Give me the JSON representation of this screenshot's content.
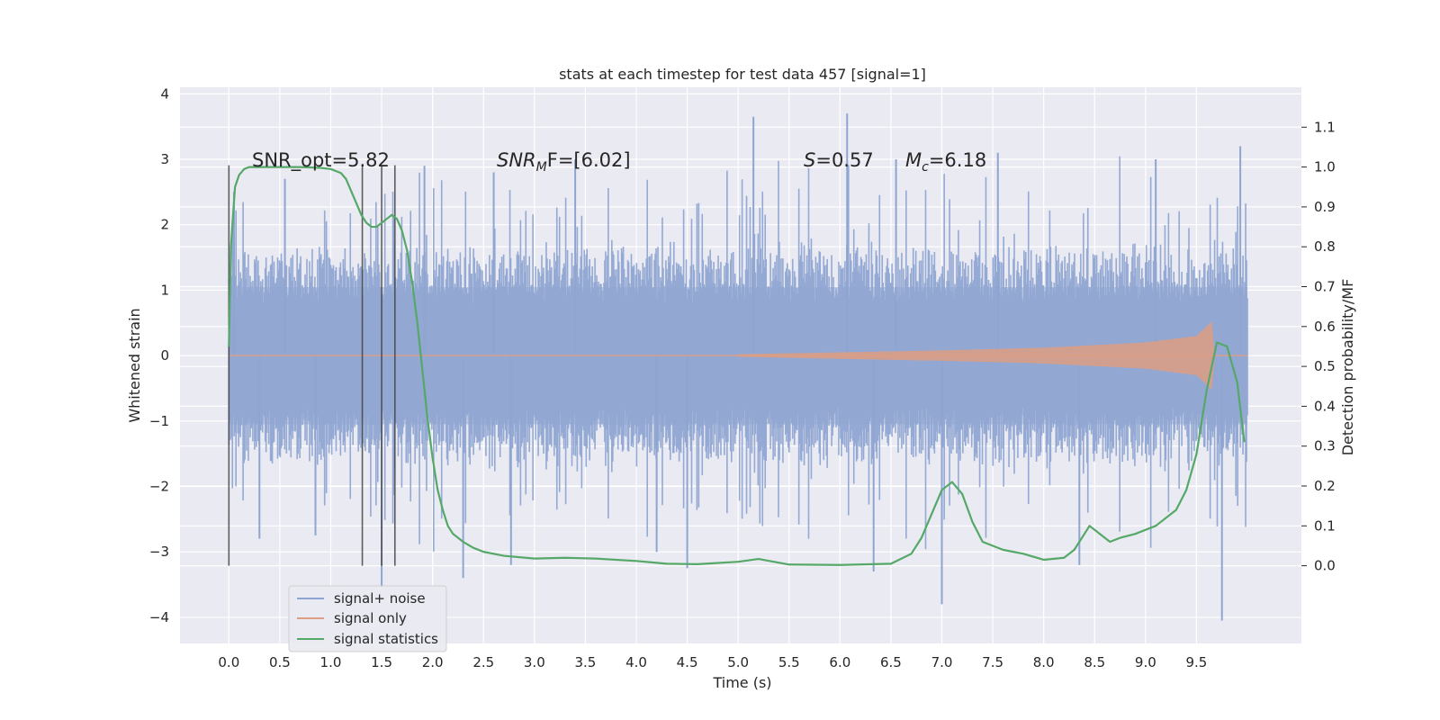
{
  "chart_data": {
    "type": "line",
    "title": "stats at each timestep for test data 457 [signal=1]",
    "xlabel": "Time (s)",
    "ylabel": "Whitened strain",
    "y2label": "Detection probability/MF",
    "xlim": [
      -0.48,
      10.53
    ],
    "ylim": [
      -4.4,
      4.1
    ],
    "y2lim": [
      -0.195,
      1.2
    ],
    "xticks": [
      "0.0",
      "0.5",
      "1.0",
      "1.5",
      "2.0",
      "2.5",
      "3.0",
      "3.5",
      "4.0",
      "4.5",
      "5.0",
      "5.5",
      "6.0",
      "6.5",
      "7.0",
      "7.5",
      "8.0",
      "8.5",
      "9.0",
      "9.5"
    ],
    "yticks": [
      "4",
      "3",
      "2",
      "1",
      "0",
      "−1",
      "−2",
      "−3",
      "−4"
    ],
    "y2ticks": [
      "1.1",
      "1.0",
      "0.9",
      "0.8",
      "0.7",
      "0.6",
      "0.5",
      "0.4",
      "0.3",
      "0.2",
      "0.1",
      "0.0"
    ],
    "grid": true,
    "legend_position": "lower-left",
    "annotations": {
      "snr_opt": "SNR_opt=5.82",
      "snr_mf_label": "SNR",
      "snr_mf_sub": "M",
      "snr_mf_rest": "F=[6.02]",
      "s_label": "S",
      "s_rest": "=0.57",
      "mc_label": "M",
      "mc_sub": "c",
      "mc_rest": "=6.18"
    },
    "vertical_markers": [
      0.0,
      1.31,
      1.5,
      1.63
    ],
    "series": [
      {
        "name": "signal+ noise",
        "color": "#8fa5d1",
        "x_range": [
          0.0,
          10.0
        ],
        "typical_range": [
          -1.5,
          1.6
        ],
        "spikes": [
          {
            "x": 0.05,
            "y": 2.5
          },
          {
            "x": 0.3,
            "y": -2.8
          },
          {
            "x": 0.55,
            "y": 2.7
          },
          {
            "x": 0.85,
            "y": -2.75
          },
          {
            "x": 1.5,
            "y": -3.55
          },
          {
            "x": 1.92,
            "y": 2.9
          },
          {
            "x": 2.3,
            "y": -3.4
          },
          {
            "x": 2.6,
            "y": 2.8
          },
          {
            "x": 2.77,
            "y": -3.2
          },
          {
            "x": 3.4,
            "y": 3.0
          },
          {
            "x": 4.2,
            "y": -3.0
          },
          {
            "x": 4.5,
            "y": -3.25
          },
          {
            "x": 5.15,
            "y": 3.65
          },
          {
            "x": 6.07,
            "y": 3.7
          },
          {
            "x": 6.33,
            "y": -3.3
          },
          {
            "x": 6.55,
            "y": 3.0
          },
          {
            "x": 7.0,
            "y": -3.8
          },
          {
            "x": 7.55,
            "y": 3.1
          },
          {
            "x": 8.35,
            "y": -3.2
          },
          {
            "x": 9.1,
            "y": 3.0
          },
          {
            "x": 9.75,
            "y": -4.05
          },
          {
            "x": 9.93,
            "y": 3.2
          }
        ]
      },
      {
        "name": "signal only",
        "color": "#dd9e83",
        "x_range": [
          0.0,
          10.0
        ],
        "envelope_x": [
          5.0,
          6.0,
          7.0,
          8.0,
          9.0,
          9.5,
          9.65,
          9.68,
          10.0
        ],
        "envelope_amp": [
          0.02,
          0.05,
          0.08,
          0.12,
          0.2,
          0.3,
          0.52,
          0.0,
          0.0
        ]
      },
      {
        "name": "signal statistics",
        "color": "#55a868",
        "axis": "right",
        "x": [
          0.0,
          0.02,
          0.06,
          0.1,
          0.15,
          0.2,
          0.3,
          0.5,
          0.7,
          0.9,
          1.0,
          1.1,
          1.15,
          1.2,
          1.25,
          1.3,
          1.35,
          1.4,
          1.45,
          1.5,
          1.55,
          1.6,
          1.65,
          1.7,
          1.75,
          1.8,
          1.85,
          1.9,
          1.95,
          2.0,
          2.05,
          2.1,
          2.15,
          2.2,
          2.3,
          2.4,
          2.5,
          2.7,
          3.0,
          3.3,
          3.6,
          4.0,
          4.3,
          4.6,
          5.0,
          5.2,
          5.5,
          6.0,
          6.5,
          6.7,
          6.8,
          6.9,
          7.0,
          7.1,
          7.2,
          7.3,
          7.4,
          7.6,
          7.8,
          8.0,
          8.2,
          8.3,
          8.4,
          8.45,
          8.55,
          8.65,
          8.75,
          8.9,
          9.1,
          9.3,
          9.4,
          9.5,
          9.6,
          9.7,
          9.8,
          9.9,
          9.97
        ],
        "y": [
          0.55,
          0.8,
          0.95,
          0.98,
          0.995,
          1.0,
          1.0,
          1.0,
          1.0,
          0.998,
          0.995,
          0.985,
          0.97,
          0.94,
          0.91,
          0.88,
          0.86,
          0.85,
          0.85,
          0.86,
          0.87,
          0.88,
          0.87,
          0.84,
          0.79,
          0.71,
          0.61,
          0.49,
          0.37,
          0.27,
          0.19,
          0.14,
          0.1,
          0.08,
          0.06,
          0.045,
          0.035,
          0.025,
          0.018,
          0.02,
          0.018,
          0.012,
          0.005,
          0.004,
          0.01,
          0.017,
          0.003,
          0.002,
          0.005,
          0.03,
          0.07,
          0.13,
          0.19,
          0.21,
          0.18,
          0.11,
          0.06,
          0.04,
          0.03,
          0.015,
          0.02,
          0.04,
          0.08,
          0.1,
          0.08,
          0.06,
          0.07,
          0.08,
          0.1,
          0.14,
          0.19,
          0.28,
          0.44,
          0.56,
          0.55,
          0.46,
          0.31
        ]
      }
    ]
  }
}
